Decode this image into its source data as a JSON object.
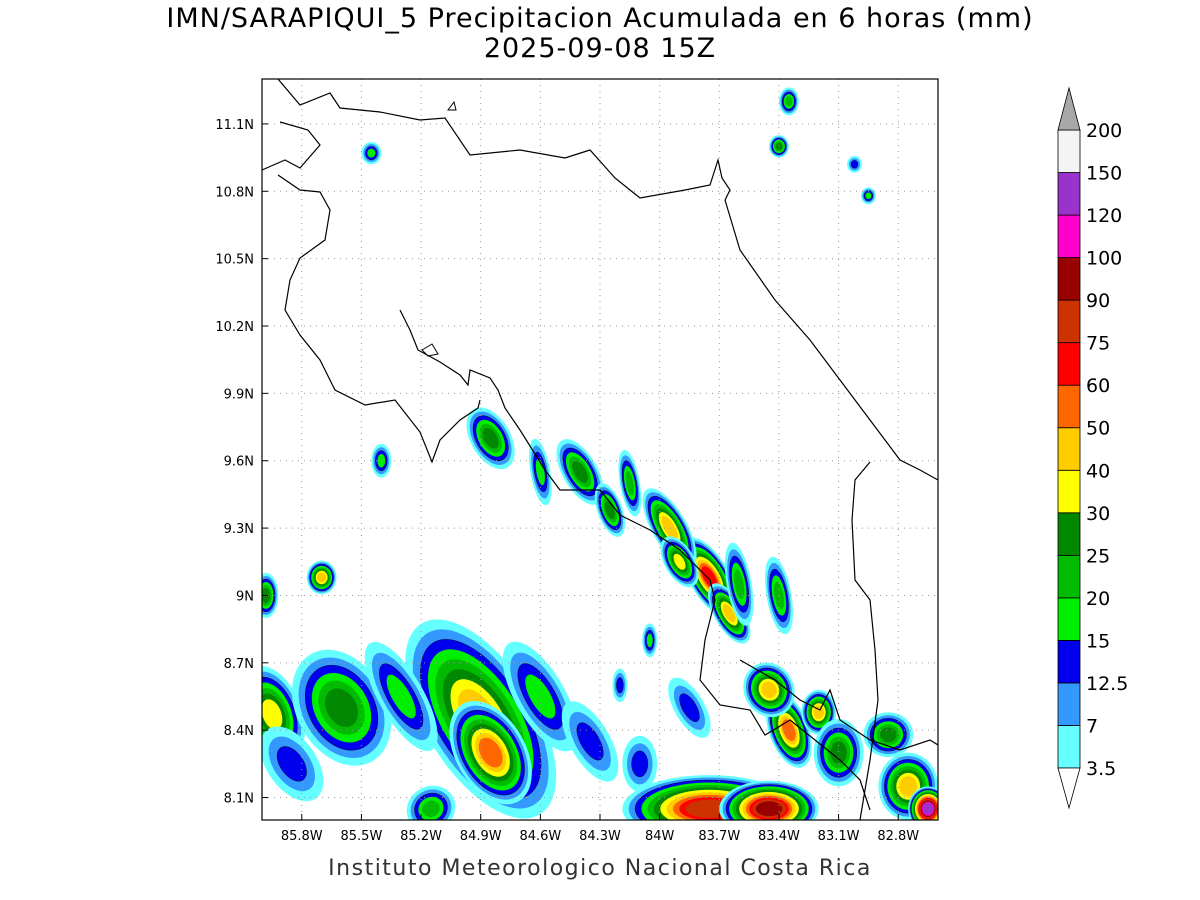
{
  "title_line1": "IMN/SARAPIQUI_5 Precipitacion Acumulada en 6 horas (mm)",
  "title_line2": "2025-09-08 15Z",
  "credit": "Instituto Meteorologico Nacional Costa Rica",
  "axes": {
    "lon_range": [
      -86.0,
      -82.6
    ],
    "lat_range": [
      8.0,
      11.3
    ],
    "lon_ticks": [
      {
        "value": -85.8,
        "label": "85.8W"
      },
      {
        "value": -85.5,
        "label": "85.5W"
      },
      {
        "value": -85.2,
        "label": "85.2W"
      },
      {
        "value": -84.9,
        "label": "84.9W"
      },
      {
        "value": -84.6,
        "label": "84.6W"
      },
      {
        "value": -84.3,
        "label": "84.3W"
      },
      {
        "value": -84.0,
        "label": "84W"
      },
      {
        "value": -83.7,
        "label": "83.7W"
      },
      {
        "value": -83.4,
        "label": "83.4W"
      },
      {
        "value": -83.1,
        "label": "83.1W"
      },
      {
        "value": -82.8,
        "label": "82.8W"
      }
    ],
    "lat_ticks": [
      {
        "value": 8.1,
        "label": "8.1N"
      },
      {
        "value": 8.4,
        "label": "8.4N"
      },
      {
        "value": 8.7,
        "label": "8.7N"
      },
      {
        "value": 9.0,
        "label": "9N"
      },
      {
        "value": 9.3,
        "label": "9.3N"
      },
      {
        "value": 9.6,
        "label": "9.6N"
      },
      {
        "value": 9.9,
        "label": "9.9N"
      },
      {
        "value": 10.2,
        "label": "10.2N"
      },
      {
        "value": 10.5,
        "label": "10.5N"
      },
      {
        "value": 10.8,
        "label": "10.8N"
      },
      {
        "value": 11.1,
        "label": "11.1N"
      }
    ],
    "grid": true
  },
  "colorbar": {
    "levels": [
      "3.5",
      "7",
      "12.5",
      "15",
      "20",
      "25",
      "30",
      "40",
      "50",
      "60",
      "75",
      "90",
      "100",
      "120",
      "150",
      "200"
    ],
    "colors": [
      "#ffffff",
      "#66ffff",
      "#3399ff",
      "#0000ee",
      "#00ee00",
      "#00bb00",
      "#008800",
      "#ffff00",
      "#ffcc00",
      "#ff6600",
      "#ff0000",
      "#cc3300",
      "#990000",
      "#ff00cc",
      "#9933cc",
      "#f4f4f4",
      "#a8a8a8"
    ]
  },
  "precip_cells": [
    {
      "lon": -84.9,
      "lat": 8.45,
      "rlon": 0.22,
      "rlat": 0.4,
      "rot": -32,
      "val": 40
    },
    {
      "lon": -84.85,
      "lat": 8.3,
      "rlon": 0.14,
      "rlat": 0.2,
      "rot": -30,
      "val": 50
    },
    {
      "lon": -85.95,
      "lat": 8.47,
      "rlon": 0.12,
      "rlat": 0.18,
      "rot": -20,
      "val": 30
    },
    {
      "lon": -85.6,
      "lat": 8.5,
      "rlon": 0.18,
      "rlat": 0.22,
      "rot": -30,
      "val": 25
    },
    {
      "lon": -85.85,
      "lat": 8.25,
      "rlon": 0.1,
      "rlat": 0.15,
      "rot": -35,
      "val": 12.5
    },
    {
      "lon": -85.3,
      "lat": 8.55,
      "rlon": 0.09,
      "rlat": 0.22,
      "rot": -30,
      "val": 15
    },
    {
      "lon": -84.6,
      "lat": 8.55,
      "rlon": 0.1,
      "rlat": 0.22,
      "rot": -30,
      "val": 15
    },
    {
      "lon": -84.35,
      "lat": 8.35,
      "rlon": 0.08,
      "rlat": 0.16,
      "rot": -30,
      "val": 12.5
    },
    {
      "lon": -84.1,
      "lat": 8.25,
      "rlon": 0.07,
      "rlat": 0.1,
      "rot": 0,
      "val": 12.5
    },
    {
      "lon": -83.75,
      "lat": 8.05,
      "rlon": 0.35,
      "rlat": 0.12,
      "rot": 0,
      "val": 75
    },
    {
      "lon": -83.45,
      "lat": 8.05,
      "rlon": 0.2,
      "rlat": 0.1,
      "rot": 0,
      "val": 90
    },
    {
      "lon": -83.35,
      "lat": 8.4,
      "rlon": 0.08,
      "rlat": 0.14,
      "rot": -20,
      "val": 50
    },
    {
      "lon": -83.45,
      "lat": 8.58,
      "rlon": 0.1,
      "rlat": 0.1,
      "rot": -30,
      "val": 40
    },
    {
      "lon": -83.2,
      "lat": 8.48,
      "rlon": 0.07,
      "rlat": 0.08,
      "rot": 0,
      "val": 40
    },
    {
      "lon": -82.75,
      "lat": 8.15,
      "rlon": 0.12,
      "rlat": 0.12,
      "rot": 0,
      "val": 40
    },
    {
      "lon": -82.65,
      "lat": 8.05,
      "rlon": 0.08,
      "rlat": 0.08,
      "rot": 0,
      "val": 120
    },
    {
      "lon": -83.75,
      "lat": 9.08,
      "rlon": 0.08,
      "rlat": 0.16,
      "rot": -30,
      "val": 60
    },
    {
      "lon": -83.65,
      "lat": 8.92,
      "rlon": 0.06,
      "rlat": 0.12,
      "rot": -30,
      "val": 40
    },
    {
      "lon": -83.95,
      "lat": 9.3,
      "rlon": 0.07,
      "rlat": 0.16,
      "rot": -30,
      "val": 40
    },
    {
      "lon": -83.9,
      "lat": 9.15,
      "rlon": 0.06,
      "rlat": 0.1,
      "rot": -30,
      "val": 30
    },
    {
      "lon": -84.4,
      "lat": 9.55,
      "rlon": 0.07,
      "rlat": 0.13,
      "rot": -30,
      "val": 25
    },
    {
      "lon": -84.25,
      "lat": 9.38,
      "rlon": 0.05,
      "rlat": 0.1,
      "rot": -20,
      "val": 25
    },
    {
      "lon": -84.15,
      "lat": 9.5,
      "rlon": 0.04,
      "rlat": 0.12,
      "rot": -10,
      "val": 20
    },
    {
      "lon": -83.6,
      "lat": 9.05,
      "rlon": 0.05,
      "rlat": 0.15,
      "rot": -10,
      "val": 20
    },
    {
      "lon": -83.4,
      "lat": 9.0,
      "rlon": 0.05,
      "rlat": 0.14,
      "rot": -10,
      "val": 20
    },
    {
      "lon": -84.85,
      "lat": 9.7,
      "rlon": 0.08,
      "rlat": 0.12,
      "rot": -30,
      "val": 25
    },
    {
      "lon": -84.6,
      "lat": 9.55,
      "rlon": 0.04,
      "rlat": 0.12,
      "rot": -10,
      "val": 15
    },
    {
      "lon": -85.4,
      "lat": 9.6,
      "rlon": 0.04,
      "rlat": 0.06,
      "rot": 0,
      "val": 15
    },
    {
      "lon": -85.7,
      "lat": 9.08,
      "rlon": 0.06,
      "rlat": 0.06,
      "rot": 0,
      "val": 40
    },
    {
      "lon": -85.98,
      "lat": 9.0,
      "rlon": 0.05,
      "rlat": 0.08,
      "rot": 0,
      "val": 25
    },
    {
      "lon": -85.45,
      "lat": 10.97,
      "rlon": 0.04,
      "rlat": 0.04,
      "rot": 0,
      "val": 15
    },
    {
      "lon": -83.4,
      "lat": 11.0,
      "rlon": 0.04,
      "rlat": 0.04,
      "rot": 0,
      "val": 25
    },
    {
      "lon": -83.35,
      "lat": 11.2,
      "rlon": 0.04,
      "rlat": 0.05,
      "rot": 0,
      "val": 20
    },
    {
      "lon": -82.95,
      "lat": 10.78,
      "rlon": 0.03,
      "rlat": 0.03,
      "rot": 0,
      "val": 15
    },
    {
      "lon": -83.02,
      "lat": 10.92,
      "rlon": 0.03,
      "rlat": 0.03,
      "rot": 0,
      "val": 12.5
    },
    {
      "lon": -83.85,
      "lat": 8.5,
      "rlon": 0.06,
      "rlat": 0.12,
      "rot": -30,
      "val": 12.5
    },
    {
      "lon": -84.2,
      "lat": 8.6,
      "rlon": 0.03,
      "rlat": 0.06,
      "rot": 0,
      "val": 12.5
    },
    {
      "lon": -84.05,
      "lat": 8.8,
      "rlon": 0.03,
      "rlat": 0.06,
      "rot": 0,
      "val": 15
    },
    {
      "lon": -83.1,
      "lat": 8.3,
      "rlon": 0.1,
      "rlat": 0.12,
      "rot": 0,
      "val": 25
    },
    {
      "lon": -82.85,
      "lat": 8.38,
      "rlon": 0.1,
      "rlat": 0.08,
      "rot": 0,
      "val": 25
    },
    {
      "lon": -85.15,
      "lat": 8.05,
      "rlon": 0.1,
      "rlat": 0.08,
      "rot": -30,
      "val": 20
    }
  ]
}
